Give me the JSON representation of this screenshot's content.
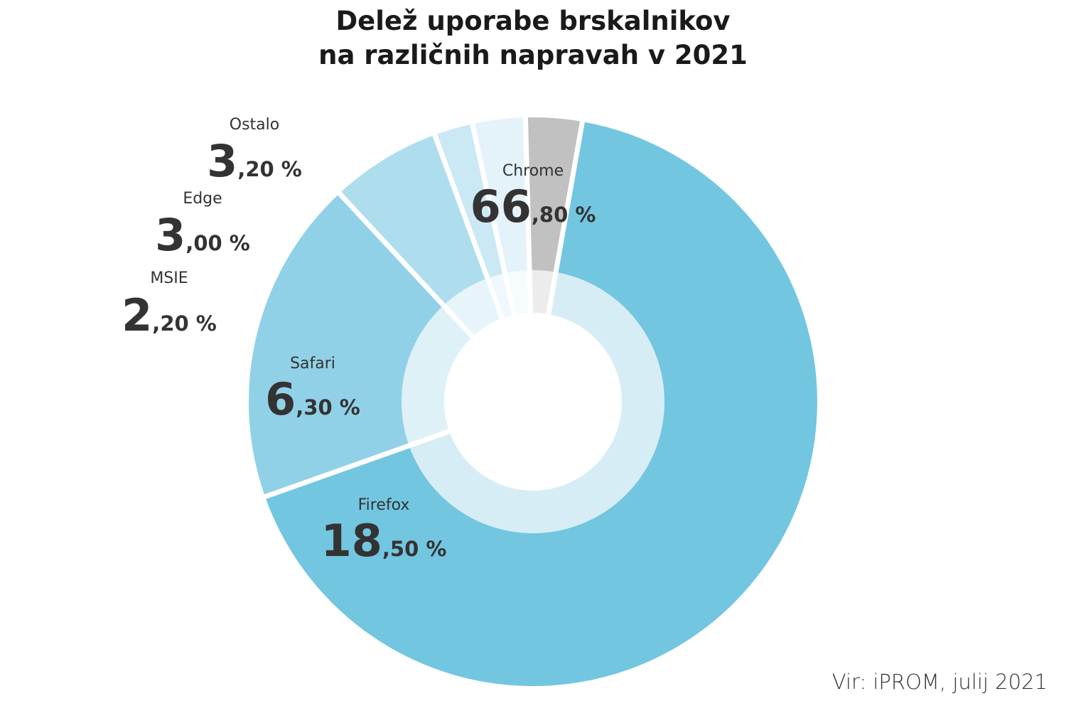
{
  "chart_data": {
    "type": "pie",
    "title_lines": [
      "Delež uporabe brskalnikov",
      "na različnih napravah v 2021"
    ],
    "slices": [
      {
        "name": "Chrome",
        "value": 66.8,
        "int": "66",
        "dec": ",80 %",
        "color": "#73c6e0",
        "inner_color": "#d7edf5"
      },
      {
        "name": "Firefox",
        "value": 18.5,
        "int": "18",
        "dec": ",50 %",
        "color": "#91d1e8",
        "inner_color": "#def1f7"
      },
      {
        "name": "Safari",
        "value": 6.3,
        "int": "6",
        "dec": ",30 %",
        "color": "#aedeed",
        "inner_color": "#e7f5fa"
      },
      {
        "name": "MSIE",
        "value": 2.2,
        "int": "2",
        "dec": ",20 %",
        "color": "#cbe9f4",
        "inner_color": "#eff8fc"
      },
      {
        "name": "Edge",
        "value": 3.0,
        "int": "3",
        "dec": ",00 %",
        "color": "#e4f3f9",
        "inner_color": "#f6fbfd"
      },
      {
        "name": "Ostalo",
        "value": 3.2,
        "int": "3",
        "dec": ",20 %",
        "color": "#c1c1c1",
        "inner_color": "#ececec"
      }
    ],
    "legend": "none"
  },
  "source": "Vir: iPROM, julij 2021"
}
